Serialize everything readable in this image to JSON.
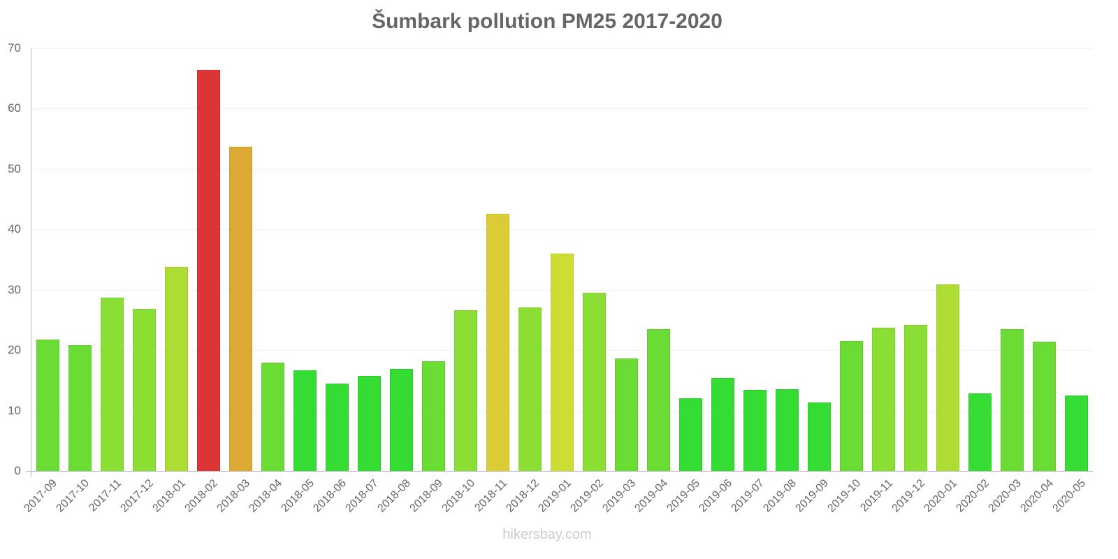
{
  "chart_data": {
    "type": "bar",
    "title": "Šumbark pollution PM25 2017-2020",
    "xlabel": "",
    "ylabel": "",
    "ylim": [
      0,
      70
    ],
    "yticks": [
      0,
      10,
      20,
      30,
      40,
      50,
      60,
      70
    ],
    "grid": true,
    "legend": null,
    "categories": [
      "2017-09",
      "2017-10",
      "2017-11",
      "2017-12",
      "2018-01",
      "2018-02",
      "2018-03",
      "2018-04",
      "2018-05",
      "2018-06",
      "2018-07",
      "2018-08",
      "2018-09",
      "2018-10",
      "2018-11",
      "2018-12",
      "2019-01",
      "2019-02",
      "2019-03",
      "2019-04",
      "2019-05",
      "2019-06",
      "2019-07",
      "2019-08",
      "2019-09",
      "2019-10",
      "2019-11",
      "2019-12",
      "2020-01",
      "2020-02",
      "2020-03",
      "2020-04",
      "2020-05"
    ],
    "values": [
      21.8,
      20.8,
      28.7,
      26.8,
      33.8,
      66.4,
      53.7,
      17.9,
      16.7,
      14.5,
      15.7,
      16.9,
      18.2,
      26.6,
      42.6,
      27.1,
      36.0,
      29.5,
      18.6,
      23.5,
      12.0,
      15.4,
      13.4,
      13.5,
      11.3,
      21.5,
      23.7,
      24.2,
      30.9,
      12.8,
      23.5,
      21.4,
      12.5
    ],
    "colors": [
      "#6bdc34",
      "#6bdc34",
      "#8ade34",
      "#8ade34",
      "#addd33",
      "#dc3535",
      "#dba934",
      "#6bdc34",
      "#34dc34",
      "#34dc34",
      "#34dc34",
      "#34dc34",
      "#6bdc34",
      "#8ade34",
      "#dbcb34",
      "#8ade34",
      "#cedd34",
      "#8ade34",
      "#6bdc34",
      "#6bdc34",
      "#34dc34",
      "#34dc34",
      "#34dc34",
      "#34dc34",
      "#34dc34",
      "#6bdc34",
      "#8ade34",
      "#8ade34",
      "#addd33",
      "#34dc34",
      "#6bdc34",
      "#6bdc34",
      "#34dc34"
    ]
  },
  "watermark": "hikersbay.com"
}
